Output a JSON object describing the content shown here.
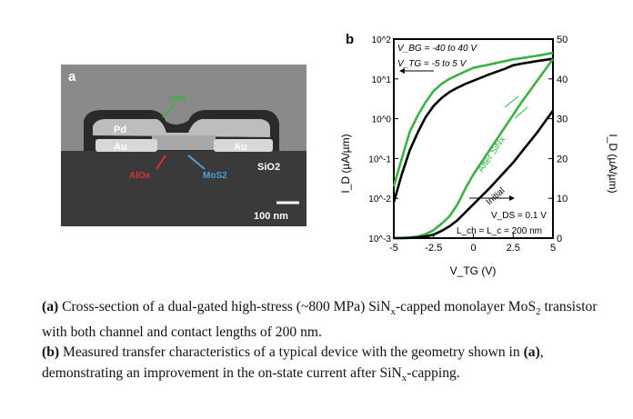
{
  "panel_a": {
    "label": "a",
    "labels": {
      "sinx": "SiNx",
      "pd": "Pd",
      "au_left": "Au",
      "au_right": "Au",
      "alox": "AlOx",
      "mos2": "MoS2",
      "sio2": "SiO2"
    },
    "scale_bar": "100 nm",
    "colors": {
      "sinx": "#3cb043",
      "alox": "#e03030",
      "mos2": "#4aa0e0"
    }
  },
  "chart_data": {
    "type": "line",
    "panel_label": "b",
    "xlabel": "V_TG (V)",
    "ylabel_left": "I_D (µA/µm)",
    "ylabel_right": "I_D (µA/µm)",
    "xlim": [
      -5,
      5
    ],
    "ylim_left": [
      0.001,
      100
    ],
    "yscale_left": "log",
    "ylim_right": [
      0,
      50
    ],
    "x_ticks": [
      "-5",
      "-2.5",
      "0",
      "2.5",
      "5"
    ],
    "y_ticks_left": [
      "10^-3",
      "10^-2",
      "10^-1",
      "10^0",
      "10^1",
      "10^2"
    ],
    "y_ticks_right": [
      "0",
      "10",
      "20",
      "30",
      "40",
      "50"
    ],
    "annotations": {
      "vbg": "V_BG = -40 to 40 V",
      "vtg": "V_TG = -5 to 5 V",
      "vds": "V_DS = 0.1 V",
      "l": "L_ch = L_c = 200 nm",
      "after": "After SiNx",
      "initial": "Initial"
    },
    "x": [
      -5,
      -4.5,
      -4,
      -3.5,
      -3,
      -2.5,
      -2,
      -1.5,
      -1,
      -0.5,
      0,
      1,
      2,
      2.5,
      3,
      4,
      5
    ],
    "series": [
      {
        "name": "After SiNx",
        "axis": "left",
        "color": "#3cb043",
        "values": [
          0.02,
          0.1,
          0.47,
          1.2,
          2.6,
          5,
          7.5,
          10,
          12.5,
          15.5,
          19,
          23,
          28,
          31,
          33,
          38,
          45
        ]
      },
      {
        "name": "Initial",
        "axis": "left",
        "color": "#000000",
        "values": [
          0.008,
          0.04,
          0.16,
          0.45,
          1.1,
          2.1,
          3.3,
          4.7,
          6,
          7.5,
          9,
          13,
          18,
          22,
          24,
          28,
          32
        ]
      },
      {
        "name": "After SiNx",
        "axis": "right",
        "color": "#3cb043",
        "values": [
          0,
          0.05,
          0.15,
          0.4,
          1,
          2,
          3.6,
          5.5,
          8.5,
          12.5,
          16,
          22,
          28,
          31,
          34,
          39.5,
          45
        ]
      },
      {
        "name": "Initial",
        "axis": "right",
        "color": "#000000",
        "values": [
          0,
          0,
          0.05,
          0.15,
          0.4,
          0.9,
          1.8,
          3,
          4.5,
          6.5,
          8.5,
          12.5,
          16.8,
          19,
          21.5,
          26.5,
          32
        ]
      }
    ]
  },
  "caption": {
    "a_tag": "(a)",
    "a_text1": " Cross-section of a dual-gated high-stress (~800 MPa) SiN",
    "a_sub1": "x",
    "a_text2": "-capped monolayer MoS",
    "a_sub2": "2",
    "a_text3": " transistor with both channel and contact lengths of 200 nm.",
    "b_tag": "(b)",
    "b_text1": " Measured transfer characteristics of a typical device with the geometry shown in ",
    "b_ref": "(a)",
    "b_text2": ", demonstrating an improvement in the on-state current after SiN",
    "b_sub": "x",
    "b_text3": "-capping."
  }
}
